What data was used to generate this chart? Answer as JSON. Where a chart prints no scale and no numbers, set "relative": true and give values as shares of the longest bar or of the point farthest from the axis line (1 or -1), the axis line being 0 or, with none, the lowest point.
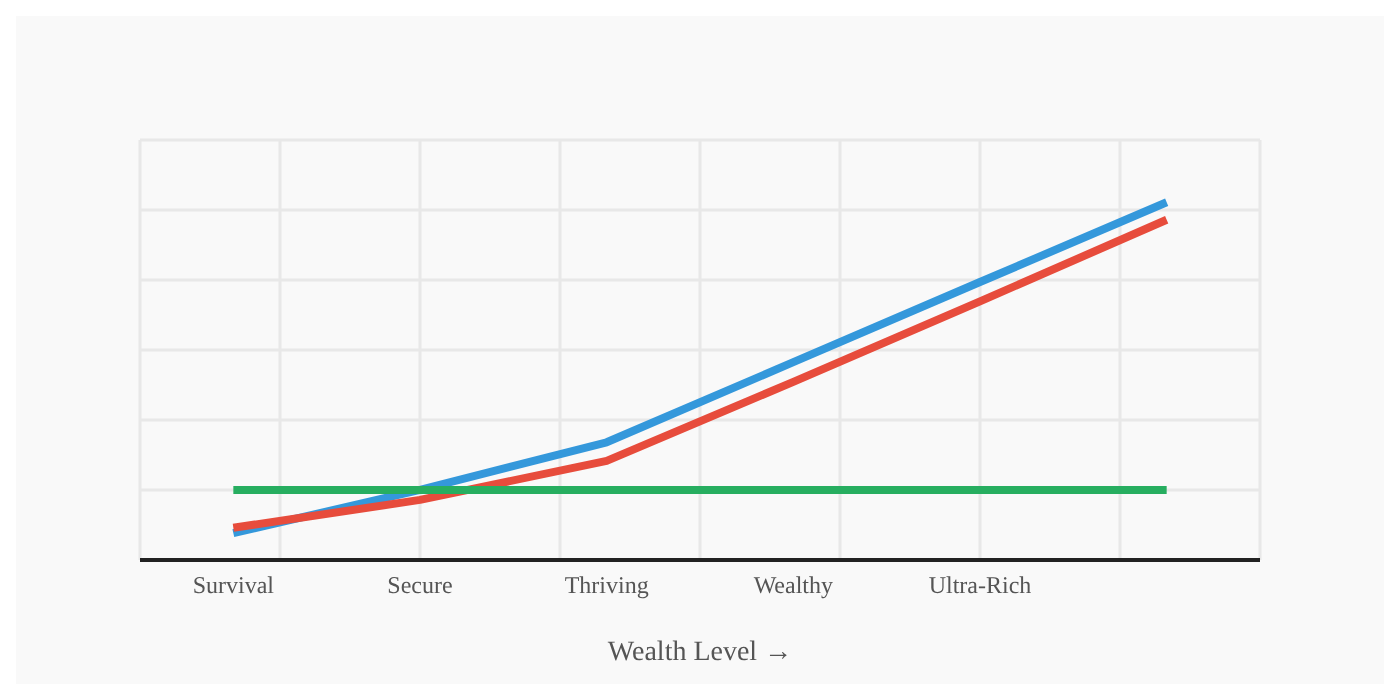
{
  "chart_data": {
    "type": "line",
    "relative": true,
    "xlabel": "Wealth Level →",
    "categories": [
      "Survival",
      "Secure",
      "Thriving",
      "Wealthy",
      "Ultra-Rich",
      null
    ],
    "grid": true,
    "legend": false,
    "marker": "none",
    "line_style": "solid",
    "series": [
      {
        "color": "#3498db",
        "values": [
          0.075,
          0.196,
          0.329,
          0.553,
          0.777,
          1
        ]
      },
      {
        "color": "#e74c3c",
        "values": [
          0.09,
          0.168,
          0.277,
          0.498,
          0.723,
          0.951
        ]
      },
      {
        "color": "#27ae60",
        "values": [
          0.196,
          0.196,
          0.196,
          0.196,
          0.196,
          0.196
        ]
      }
    ]
  }
}
